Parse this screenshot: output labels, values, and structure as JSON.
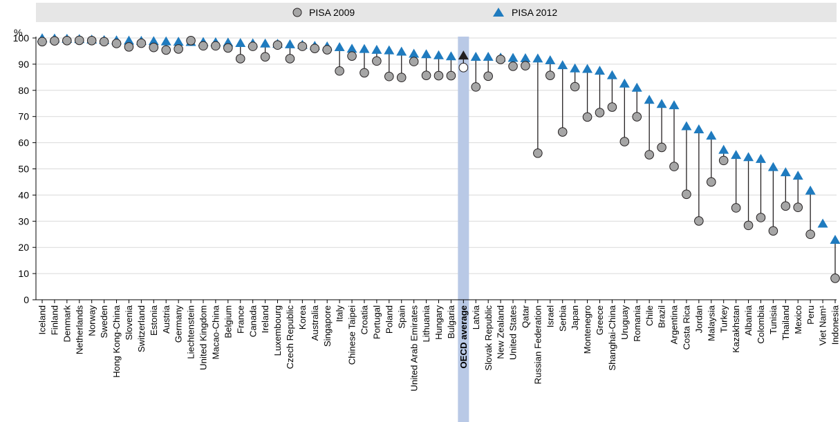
{
  "chart_data": {
    "type": "scatter",
    "ylabel": "%",
    "ylim": [
      0,
      100
    ],
    "yticks": [
      0,
      10,
      20,
      30,
      40,
      50,
      60,
      70,
      80,
      90,
      100
    ],
    "grid": true,
    "legend_position": "top",
    "categories": [
      "Iceland",
      "Finland",
      "Denmark",
      "Netherlands",
      "Norway",
      "Sweden",
      "Hong Kong-China",
      "Slovenia",
      "Switzerland",
      "Estonia",
      "Austria",
      "Germany",
      "Liechtenstein",
      "United Kingdom",
      "Macao-China",
      "Belgium",
      "France",
      "Canada",
      "Ireland",
      "Luxembourg",
      "Czech Republic",
      "Korea",
      "Australia",
      "Singapore",
      "Italy",
      "Chinese Taipei",
      "Croatia",
      "Portugal",
      "Poland",
      "Spain",
      "United Arab Emirates",
      "Lithuania",
      "Hungary",
      "Bulgaria",
      "OECD average",
      "Latvia",
      "Slovak Republic",
      "New Zealand",
      "United States",
      "Qatar",
      "Russian Federation",
      "Israel",
      "Serbia",
      "Japan",
      "Montenegro",
      "Greece",
      "Shanghai-China",
      "Uruguay",
      "Romania",
      "Chile",
      "Brazil",
      "Argentina",
      "Costa Rica",
      "Jordan",
      "Malaysia",
      "Turkey",
      "Kazakhstan",
      "Albania",
      "Colombia",
      "Tunisia",
      "Thailand",
      "Mexico",
      "Peru",
      "Viet Nam¹",
      "Indonesia"
    ],
    "highlight_category": "OECD average",
    "series": [
      {
        "name": "PISA 2009",
        "marker": "circle",
        "color": "#a6a6a6",
        "highlight_color": "#ffffff",
        "values": [
          98.6,
          98.9,
          99.0,
          99.1,
          99.0,
          98.6,
          97.9,
          96.6,
          98.0,
          96.4,
          95.4,
          95.8,
          99.0,
          97.0,
          97.0,
          96.2,
          92.1,
          96.8,
          92.8,
          97.3,
          92.1,
          96.8,
          96.0,
          95.5,
          87.4,
          93.1,
          86.7,
          91.2,
          85.3,
          84.9,
          91.0,
          85.7,
          85.6,
          85.6,
          88.7,
          81.3,
          85.4,
          91.8,
          89.2,
          89.4,
          56.0,
          85.7,
          64.1,
          81.4,
          69.8,
          71.5,
          73.6,
          60.4,
          69.9,
          55.4,
          58.2,
          50.9,
          40.3,
          30.1,
          45.0,
          53.2,
          35.1,
          28.4,
          31.4,
          26.3,
          35.8,
          35.3,
          25.0,
          null,
          8.2
        ]
      },
      {
        "name": "PISA 2012",
        "marker": "triangle",
        "color": "#1f7bbf",
        "highlight_color": "#231f20",
        "values": [
          99.7,
          99.6,
          99.5,
          99.4,
          99.2,
          99.0,
          98.9,
          98.8,
          98.7,
          98.6,
          98.5,
          98.4,
          98.3,
          98.3,
          98.2,
          98.1,
          97.9,
          97.8,
          97.7,
          97.6,
          97.4,
          97.2,
          96.8,
          96.6,
          96.3,
          95.7,
          95.6,
          95.3,
          95.1,
          94.6,
          93.8,
          93.6,
          93.2,
          92.8,
          93.1,
          92.6,
          92.6,
          92.3,
          92.2,
          92.1,
          92.0,
          91.3,
          89.4,
          88.2,
          88.0,
          87.3,
          85.6,
          82.4,
          80.8,
          76.2,
          74.6,
          74.1,
          66.1,
          64.9,
          62.5,
          57.1,
          55.1,
          54.3,
          53.6,
          50.5,
          48.5,
          47.2,
          41.5,
          28.9,
          22.7
        ]
      }
    ]
  }
}
